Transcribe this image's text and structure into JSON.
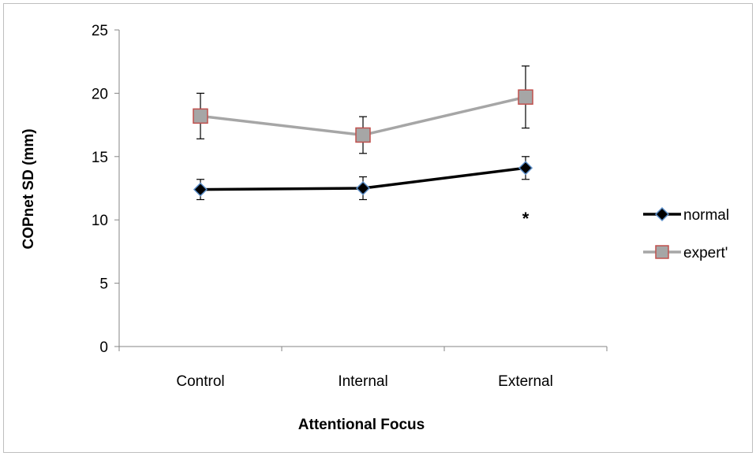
{
  "chart_data": {
    "type": "line",
    "categories": [
      "Control",
      "Internal",
      "External"
    ],
    "xlabel": "Attentional Focus",
    "ylabel": "COPnet SD (mm)",
    "ylim": [
      0,
      25
    ],
    "yticks": [
      0,
      5,
      10,
      15,
      20,
      25
    ],
    "grid": false,
    "legend_position": "right",
    "series": [
      {
        "name": "normal",
        "values": [
          12.4,
          12.5,
          14.1
        ],
        "errors": [
          0.8,
          0.9,
          0.9
        ],
        "line_color": "#000000",
        "marker": "diamond",
        "marker_fill": "#000000",
        "marker_edge": "#5b8ec9"
      },
      {
        "name": "expert'",
        "values": [
          18.2,
          16.7,
          19.7
        ],
        "errors": [
          1.8,
          1.45,
          2.45
        ],
        "line_color": "#a6a6a6",
        "marker": "square",
        "marker_fill": "#a6a6a6",
        "marker_edge": "#c0504d"
      }
    ],
    "annotations": [
      {
        "text": "*",
        "category": "External",
        "y": 10.5
      }
    ]
  }
}
